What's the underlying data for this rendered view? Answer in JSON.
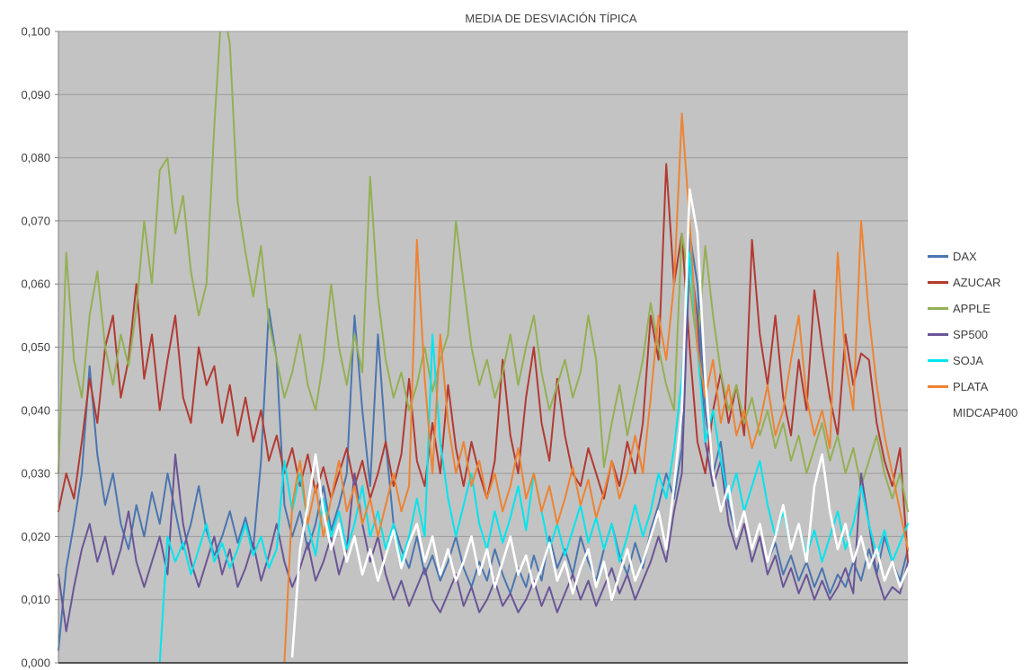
{
  "title": "MEDIA DE DESVIACIÓN TÍPICA",
  "colors": {
    "page_background": "#ffffff",
    "plot_background": "#c3c3c3",
    "gridline": "#9b9b9b",
    "axis": "#515151",
    "text": "#404040"
  },
  "chart_data": {
    "type": "line",
    "title": "MEDIA DE DESVIACIÓN TÍPICA",
    "xlabel": "",
    "ylabel": "",
    "ylim": [
      0,
      0.1
    ],
    "grid": true,
    "legend_position": "right",
    "plot_bg": "#c3c3c3",
    "grid_color": "#9b9b9b",
    "y_ticks": [
      {
        "label": "0,100",
        "value": 0.1
      },
      {
        "label": "0,090",
        "value": 0.09
      },
      {
        "label": "0,080",
        "value": 0.08
      },
      {
        "label": "0,070",
        "value": 0.07
      },
      {
        "label": "0,060",
        "value": 0.06
      },
      {
        "label": "0,050",
        "value": 0.05
      },
      {
        "label": "0,040",
        "value": 0.04
      },
      {
        "label": "0,030",
        "value": 0.03
      },
      {
        "label": "0,020",
        "value": 0.02
      },
      {
        "label": "0,010",
        "value": 0.01
      },
      {
        "label": "0,000",
        "value": 0.0
      }
    ],
    "series": [
      {
        "name": "DAX",
        "color": "#4A76B0",
        "width": 2,
        "values": [
          0.002,
          0.015,
          0.022,
          0.03,
          0.047,
          0.033,
          0.025,
          0.03,
          0.022,
          0.018,
          0.025,
          0.02,
          0.027,
          0.022,
          0.03,
          0.024,
          0.018,
          0.022,
          0.028,
          0.021,
          0.017,
          0.02,
          0.024,
          0.019,
          0.023,
          0.018,
          0.032,
          0.056,
          0.048,
          0.025,
          0.02,
          0.024,
          0.018,
          0.022,
          0.028,
          0.021,
          0.025,
          0.03,
          0.055,
          0.04,
          0.028,
          0.052,
          0.035,
          0.022,
          0.018,
          0.015,
          0.02,
          0.014,
          0.017,
          0.013,
          0.016,
          0.02,
          0.015,
          0.012,
          0.016,
          0.013,
          0.018,
          0.014,
          0.011,
          0.015,
          0.012,
          0.017,
          0.013,
          0.02,
          0.015,
          0.018,
          0.014,
          0.02,
          0.016,
          0.013,
          0.018,
          0.022,
          0.017,
          0.014,
          0.019,
          0.015,
          0.021,
          0.025,
          0.03,
          0.026,
          0.034,
          0.068,
          0.06,
          0.04,
          0.03,
          0.035,
          0.025,
          0.02,
          0.024,
          0.018,
          0.022,
          0.016,
          0.019,
          0.014,
          0.017,
          0.013,
          0.016,
          0.012,
          0.015,
          0.011,
          0.014,
          0.012,
          0.016,
          0.013,
          0.018,
          0.014,
          0.02,
          0.016,
          0.013,
          0.018
        ]
      },
      {
        "name": "AZUCAR",
        "color": "#B23A32",
        "width": 2,
        "values": [
          0.024,
          0.03,
          0.026,
          0.035,
          0.045,
          0.038,
          0.05,
          0.055,
          0.042,
          0.048,
          0.06,
          0.045,
          0.052,
          0.04,
          0.048,
          0.055,
          0.042,
          0.038,
          0.05,
          0.044,
          0.047,
          0.038,
          0.044,
          0.036,
          0.042,
          0.035,
          0.04,
          0.032,
          0.036,
          0.03,
          0.034,
          0.028,
          0.033,
          0.027,
          0.031,
          0.026,
          0.03,
          0.034,
          0.028,
          0.032,
          0.026,
          0.03,
          0.035,
          0.028,
          0.033,
          0.045,
          0.032,
          0.028,
          0.038,
          0.03,
          0.044,
          0.034,
          0.028,
          0.035,
          0.03,
          0.026,
          0.032,
          0.048,
          0.036,
          0.03,
          0.042,
          0.05,
          0.038,
          0.032,
          0.045,
          0.036,
          0.03,
          0.028,
          0.034,
          0.03,
          0.026,
          0.032,
          0.028,
          0.035,
          0.03,
          0.038,
          0.055,
          0.048,
          0.079,
          0.06,
          0.068,
          0.05,
          0.035,
          0.03,
          0.04,
          0.046,
          0.038,
          0.044,
          0.036,
          0.067,
          0.052,
          0.044,
          0.055,
          0.042,
          0.036,
          0.048,
          0.04,
          0.059,
          0.05,
          0.042,
          0.036,
          0.052,
          0.044,
          0.049,
          0.048,
          0.038,
          0.032,
          0.028,
          0.034,
          0.016
        ]
      },
      {
        "name": "APPLE",
        "color": "#93B054",
        "width": 2,
        "values": [
          0.03,
          0.065,
          0.048,
          0.042,
          0.055,
          0.062,
          0.05,
          0.044,
          0.052,
          0.047,
          0.056,
          0.07,
          0.06,
          0.078,
          0.08,
          0.068,
          0.074,
          0.062,
          0.055,
          0.06,
          0.085,
          0.105,
          0.098,
          0.073,
          0.065,
          0.058,
          0.066,
          0.054,
          0.048,
          0.042,
          0.046,
          0.052,
          0.044,
          0.04,
          0.048,
          0.06,
          0.05,
          0.044,
          0.052,
          0.046,
          0.077,
          0.058,
          0.048,
          0.042,
          0.046,
          0.04,
          0.044,
          0.05,
          0.043,
          0.048,
          0.052,
          0.07,
          0.06,
          0.05,
          0.044,
          0.048,
          0.042,
          0.046,
          0.052,
          0.044,
          0.05,
          0.055,
          0.046,
          0.04,
          0.044,
          0.048,
          0.042,
          0.046,
          0.055,
          0.048,
          0.031,
          0.038,
          0.044,
          0.036,
          0.042,
          0.048,
          0.057,
          0.05,
          0.044,
          0.04,
          0.068,
          0.06,
          0.05,
          0.066,
          0.055,
          0.046,
          0.04,
          0.044,
          0.038,
          0.042,
          0.036,
          0.04,
          0.034,
          0.038,
          0.032,
          0.036,
          0.03,
          0.034,
          0.038,
          0.032,
          0.036,
          0.03,
          0.034,
          0.028,
          0.032,
          0.036,
          0.03,
          0.026,
          0.03,
          0.024
        ]
      },
      {
        "name": "SP500",
        "color": "#6A5597",
        "width": 2,
        "values": [
          0.014,
          0.005,
          0.012,
          0.018,
          0.022,
          0.016,
          0.02,
          0.014,
          0.018,
          0.024,
          0.016,
          0.012,
          0.016,
          0.02,
          0.014,
          0.033,
          0.022,
          0.016,
          0.012,
          0.016,
          0.02,
          0.014,
          0.018,
          0.012,
          0.015,
          0.019,
          0.013,
          0.017,
          0.022,
          0.016,
          0.012,
          0.015,
          0.019,
          0.013,
          0.016,
          0.02,
          0.014,
          0.018,
          0.03,
          0.022,
          0.016,
          0.02,
          0.014,
          0.01,
          0.013,
          0.009,
          0.012,
          0.015,
          0.01,
          0.008,
          0.011,
          0.014,
          0.009,
          0.012,
          0.008,
          0.01,
          0.013,
          0.009,
          0.011,
          0.008,
          0.01,
          0.013,
          0.009,
          0.012,
          0.008,
          0.011,
          0.014,
          0.01,
          0.013,
          0.009,
          0.012,
          0.015,
          0.011,
          0.014,
          0.01,
          0.013,
          0.016,
          0.02,
          0.016,
          0.024,
          0.03,
          0.065,
          0.055,
          0.035,
          0.028,
          0.032,
          0.022,
          0.018,
          0.022,
          0.016,
          0.02,
          0.014,
          0.017,
          0.012,
          0.015,
          0.011,
          0.014,
          0.01,
          0.013,
          0.01,
          0.012,
          0.015,
          0.011,
          0.03,
          0.022,
          0.014,
          0.01,
          0.012,
          0.011,
          0.016
        ]
      },
      {
        "name": "SOJA",
        "color": "#00E5EE",
        "width": 2,
        "values": [
          null,
          null,
          null,
          null,
          null,
          null,
          null,
          null,
          null,
          null,
          null,
          null,
          null,
          0.0,
          0.02,
          0.016,
          0.019,
          0.014,
          0.018,
          0.022,
          0.016,
          0.019,
          0.015,
          0.018,
          0.022,
          0.017,
          0.02,
          0.015,
          0.018,
          0.032,
          0.024,
          0.03,
          0.022,
          0.017,
          0.026,
          0.02,
          0.024,
          0.018,
          0.022,
          0.028,
          0.02,
          0.024,
          0.018,
          0.022,
          0.016,
          0.02,
          0.026,
          0.02,
          0.052,
          0.035,
          0.026,
          0.02,
          0.025,
          0.03,
          0.022,
          0.018,
          0.024,
          0.019,
          0.023,
          0.028,
          0.021,
          0.03,
          0.024,
          0.018,
          0.022,
          0.017,
          0.021,
          0.025,
          0.019,
          0.023,
          0.018,
          0.022,
          0.016,
          0.02,
          0.025,
          0.02,
          0.024,
          0.03,
          0.026,
          0.034,
          0.045,
          0.065,
          0.05,
          0.035,
          0.04,
          0.032,
          0.026,
          0.03,
          0.024,
          0.028,
          0.032,
          0.025,
          0.02,
          0.024,
          0.018,
          0.022,
          0.017,
          0.021,
          0.016,
          0.02,
          0.024,
          0.018,
          0.022,
          0.028,
          0.022,
          0.017,
          0.021,
          0.016,
          0.019,
          0.022
        ]
      },
      {
        "name": "PLATA",
        "color": "#EE8332",
        "width": 2,
        "values": [
          null,
          null,
          null,
          null,
          null,
          null,
          null,
          null,
          null,
          null,
          null,
          null,
          null,
          null,
          null,
          null,
          null,
          null,
          null,
          null,
          null,
          null,
          null,
          null,
          null,
          null,
          null,
          null,
          null,
          0.0,
          0.025,
          0.032,
          0.022,
          0.028,
          0.02,
          0.026,
          0.032,
          0.024,
          0.028,
          0.022,
          0.026,
          0.02,
          0.025,
          0.03,
          0.024,
          0.028,
          0.067,
          0.045,
          0.03,
          0.052,
          0.038,
          0.03,
          0.035,
          0.028,
          0.032,
          0.026,
          0.03,
          0.024,
          0.028,
          0.034,
          0.026,
          0.03,
          0.024,
          0.028,
          0.022,
          0.026,
          0.031,
          0.025,
          0.029,
          0.023,
          0.027,
          0.032,
          0.026,
          0.03,
          0.036,
          0.03,
          0.042,
          0.055,
          0.048,
          0.06,
          0.087,
          0.07,
          0.05,
          0.042,
          0.048,
          0.038,
          0.044,
          0.036,
          0.04,
          0.034,
          0.038,
          0.044,
          0.036,
          0.04,
          0.048,
          0.055,
          0.042,
          0.036,
          0.04,
          0.034,
          0.065,
          0.048,
          0.04,
          0.07,
          0.055,
          0.044,
          0.036,
          0.03,
          0.024,
          0.018
        ]
      },
      {
        "name": "MIDCAP400",
        "color": "#FFFFFF",
        "width": 2.6,
        "values": [
          null,
          null,
          null,
          null,
          null,
          null,
          null,
          null,
          null,
          null,
          null,
          null,
          null,
          null,
          null,
          null,
          null,
          null,
          null,
          null,
          null,
          null,
          null,
          null,
          null,
          null,
          null,
          null,
          null,
          null,
          0.001,
          0.018,
          0.025,
          0.033,
          0.024,
          0.018,
          0.022,
          0.016,
          0.02,
          0.014,
          0.018,
          0.013,
          0.017,
          0.021,
          0.015,
          0.019,
          0.022,
          0.016,
          0.02,
          0.014,
          0.018,
          0.013,
          0.016,
          0.02,
          0.014,
          0.018,
          0.012,
          0.016,
          0.02,
          0.014,
          0.017,
          0.012,
          0.015,
          0.019,
          0.013,
          0.016,
          0.011,
          0.015,
          0.018,
          0.012,
          0.016,
          0.01,
          0.014,
          0.018,
          0.013,
          0.016,
          0.02,
          0.024,
          0.018,
          0.028,
          0.04,
          0.075,
          0.068,
          0.045,
          0.03,
          0.024,
          0.028,
          0.02,
          0.024,
          0.018,
          0.022,
          0.016,
          0.02,
          0.025,
          0.018,
          0.022,
          0.016,
          0.028,
          0.033,
          0.024,
          0.018,
          0.022,
          0.016,
          0.02,
          0.015,
          0.018,
          0.013,
          0.016,
          0.012,
          0.015
        ]
      }
    ]
  }
}
